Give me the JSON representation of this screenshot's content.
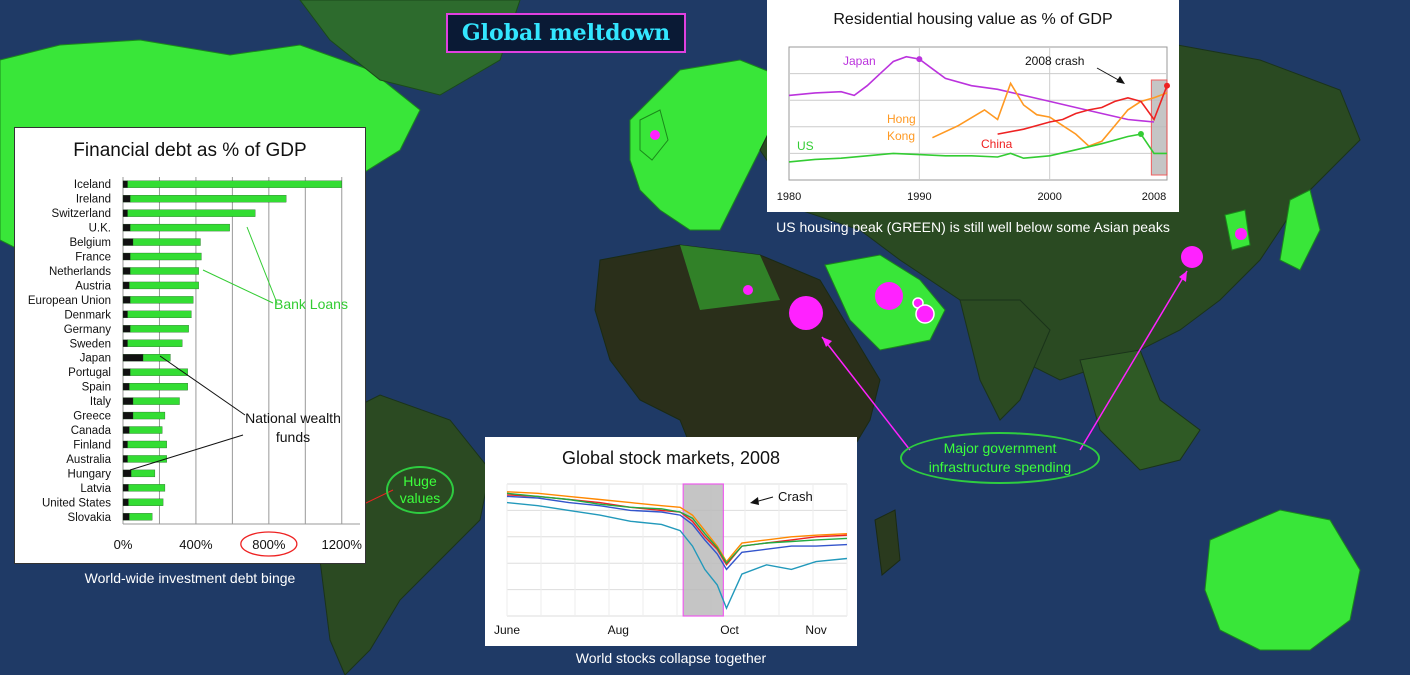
{
  "page": {
    "title": "Global meltdown",
    "captions": {
      "debt": "World-wide investment debt binge",
      "housing": "US housing peak (GREEN) is still well below some Asian peaks",
      "stocks": "World stocks collapse together"
    },
    "annotations": {
      "bank_loans": "Bank Loans",
      "national_wealth_funds": "National wealth funds",
      "huge_values": "Huge values",
      "infrastructure": "Major government infrastructure spending"
    },
    "colors": {
      "ocean": "#1f3a66",
      "land_green": "#39e639",
      "land_dark": "#2a3a1e",
      "marker": "#ff22ff",
      "annotation_green": "#2ecc40"
    }
  },
  "chart_data": [
    {
      "type": "bar",
      "title": "Financial debt as % of GDP",
      "categories": [
        "Iceland",
        "Ireland",
        "Switzerland",
        "U.K.",
        "Belgium",
        "France",
        "Netherlands",
        "Austria",
        "European Union",
        "Denmark",
        "Germany",
        "Sweden",
        "Japan",
        "Portugal",
        "Spain",
        "Italy",
        "Greece",
        "Canada",
        "Finland",
        "Australia",
        "Hungary",
        "Latvia",
        "United States",
        "Slovakia"
      ],
      "stacked": true,
      "orientation": "horizontal",
      "series": [
        {
          "name": "National wealth funds",
          "color": "#111111",
          "values": [
            25,
            40,
            25,
            40,
            55,
            40,
            40,
            35,
            40,
            25,
            40,
            25,
            110,
            40,
            35,
            55,
            55,
            35,
            25,
            25,
            45,
            30,
            30,
            35
          ]
        },
        {
          "name": "Bank Loans",
          "color": "#33dd33",
          "values": [
            1175,
            855,
            700,
            545,
            370,
            390,
            375,
            380,
            345,
            350,
            320,
            300,
            150,
            315,
            320,
            255,
            175,
            180,
            215,
            215,
            130,
            200,
            190,
            125
          ]
        }
      ],
      "xticks": [
        "0%",
        "400%",
        "800%",
        "1200%"
      ],
      "xlim": [
        0,
        1300
      ],
      "grid": true
    },
    {
      "type": "line",
      "title": "Residential housing value as % of GDP",
      "x_ticks": [
        "1980",
        "1990",
        "2000",
        "2008"
      ],
      "xlim": [
        1980,
        2009
      ],
      "annotations": [
        "2008 crash"
      ],
      "shaded_region": [
        2007.8,
        2009
      ],
      "series": [
        {
          "name": "Japan",
          "color": "#bb33dd",
          "x": [
            1980,
            1982,
            1984,
            1985,
            1986,
            1987,
            1988,
            1989,
            1990,
            1991,
            1992,
            1994,
            1996,
            1998,
            2000,
            2002,
            2004,
            2006,
            2008
          ],
          "y": [
            60,
            62,
            63,
            60,
            68,
            78,
            88,
            92,
            90,
            82,
            74,
            68,
            65,
            60,
            55,
            50,
            45,
            40,
            38
          ]
        },
        {
          "name": "Hong Kong",
          "color": "#ff9922",
          "x": [
            1991,
            1993,
            1995,
            1996,
            1997,
            1998,
            1999,
            2000,
            2001,
            2002,
            2003,
            2004,
            2005,
            2006,
            2007,
            2008,
            2009
          ],
          "y": [
            25,
            35,
            48,
            40,
            70,
            52,
            44,
            42,
            35,
            28,
            18,
            22,
            35,
            48,
            55,
            58,
            62
          ]
        },
        {
          "name": "China",
          "color": "#ee2222",
          "x": [
            1996,
            1998,
            2000,
            2001,
            2002,
            2003,
            2004,
            2005,
            2006,
            2007,
            2008,
            2009
          ],
          "y": [
            28,
            32,
            38,
            40,
            45,
            48,
            50,
            55,
            58,
            55,
            40,
            68
          ]
        },
        {
          "name": "US",
          "color": "#33cc33",
          "x": [
            1980,
            1982,
            1984,
            1986,
            1988,
            1990,
            1992,
            1994,
            1996,
            1997,
            1998,
            2000,
            2002,
            2004,
            2006,
            2007,
            2008,
            2009
          ],
          "y": [
            5,
            7,
            8,
            10,
            12,
            11,
            10,
            10,
            9,
            12,
            8,
            10,
            15,
            20,
            26,
            28,
            12,
            12
          ]
        }
      ],
      "ylim": [
        -10,
        100
      ],
      "grid": true
    },
    {
      "type": "line",
      "title": "Global stock markets, 2008",
      "x_ticks": [
        "June",
        "Aug",
        "Oct",
        "Nov"
      ],
      "xlim": [
        0,
        5.5
      ],
      "annotations": [
        "Crash"
      ],
      "shaded_region": [
        2.85,
        3.5
      ],
      "series": [
        {
          "color": "#ff8800",
          "x": [
            0,
            0.5,
            1,
            1.5,
            2,
            2.5,
            2.8,
            3,
            3.2,
            3.4,
            3.55,
            3.8,
            4.2,
            4.6,
            5,
            5.5
          ],
          "y": [
            95,
            94,
            92,
            90,
            88,
            86,
            85,
            80,
            70,
            60,
            50,
            62,
            64,
            66,
            67,
            68
          ]
        },
        {
          "color": "#ee2222",
          "x": [
            0,
            0.5,
            1,
            1.5,
            2,
            2.5,
            2.8,
            3,
            3.2,
            3.4,
            3.55,
            3.8,
            4.2,
            4.6,
            5,
            5.5
          ],
          "y": [
            93,
            92,
            90,
            88,
            85,
            83,
            82,
            76,
            66,
            58,
            48,
            60,
            62,
            64,
            66,
            67
          ]
        },
        {
          "color": "#3355cc",
          "x": [
            0,
            0.5,
            1,
            1.5,
            2,
            2.5,
            2.8,
            3,
            3.2,
            3.4,
            3.55,
            3.8,
            4.2,
            4.6,
            5,
            5.5
          ],
          "y": [
            92,
            91,
            88,
            86,
            83,
            82,
            80,
            74,
            64,
            55,
            45,
            56,
            58,
            60,
            60,
            61
          ]
        },
        {
          "color": "#22aa44",
          "x": [
            0,
            0.5,
            1,
            1.5,
            2,
            2.5,
            2.8,
            3,
            3.2,
            3.4,
            3.55,
            3.8,
            4.2,
            4.6,
            5,
            5.5
          ],
          "y": [
            94,
            92,
            90,
            87,
            85,
            84,
            82,
            78,
            68,
            59,
            49,
            60,
            62,
            63,
            64,
            65
          ]
        },
        {
          "color": "#2299bb",
          "x": [
            0,
            0.5,
            1,
            1.5,
            2,
            2.5,
            2.8,
            3,
            3.2,
            3.4,
            3.55,
            3.8,
            4.2,
            4.6,
            5,
            5.5
          ],
          "y": [
            88,
            86,
            83,
            80,
            76,
            74,
            70,
            60,
            45,
            35,
            20,
            42,
            48,
            45,
            50,
            52
          ]
        }
      ],
      "ylim": [
        15,
        100
      ],
      "grid": true
    }
  ]
}
